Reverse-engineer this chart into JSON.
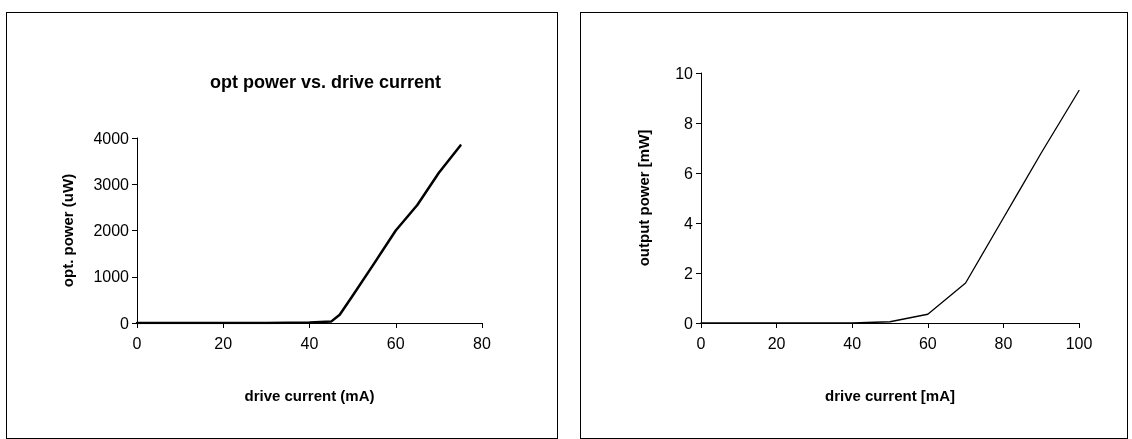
{
  "chart_data": [
    {
      "type": "line",
      "title": "opt power vs. drive current",
      "xlabel": "drive current (mA)",
      "ylabel": "opt. power (uW)",
      "xlim": [
        0,
        80
      ],
      "xticks": [
        0,
        20,
        40,
        60,
        80
      ],
      "ylim": [
        0,
        4000
      ],
      "yticks": [
        0,
        1000,
        2000,
        3000,
        4000
      ],
      "marker": "none",
      "line_style": "solid",
      "series": [
        {
          "color": "#000000",
          "x": [
            0,
            10,
            20,
            30,
            40,
            45,
            47,
            50,
            55,
            60,
            65,
            70,
            75
          ],
          "values": [
            0,
            0,
            0,
            0,
            10,
            30,
            180,
            590,
            1290,
            2000,
            2550,
            3250,
            3840
          ]
        }
      ]
    },
    {
      "type": "line",
      "xlabel": "drive current [mA]",
      "ylabel": "output power [mW]",
      "xlim": [
        0,
        100
      ],
      "xticks": [
        0,
        20,
        40,
        60,
        80,
        100
      ],
      "ylim": [
        0,
        10
      ],
      "yticks": [
        0,
        2,
        4,
        6,
        8,
        10
      ],
      "marker": "none",
      "line_style": "solid",
      "series": [
        {
          "color": "#000000",
          "x": [
            0,
            10,
            20,
            30,
            40,
            50,
            60,
            70,
            80,
            90,
            100
          ],
          "values": [
            0,
            0,
            0,
            0,
            0,
            0.05,
            0.35,
            1.6,
            4.2,
            6.8,
            9.3
          ]
        }
      ]
    }
  ]
}
